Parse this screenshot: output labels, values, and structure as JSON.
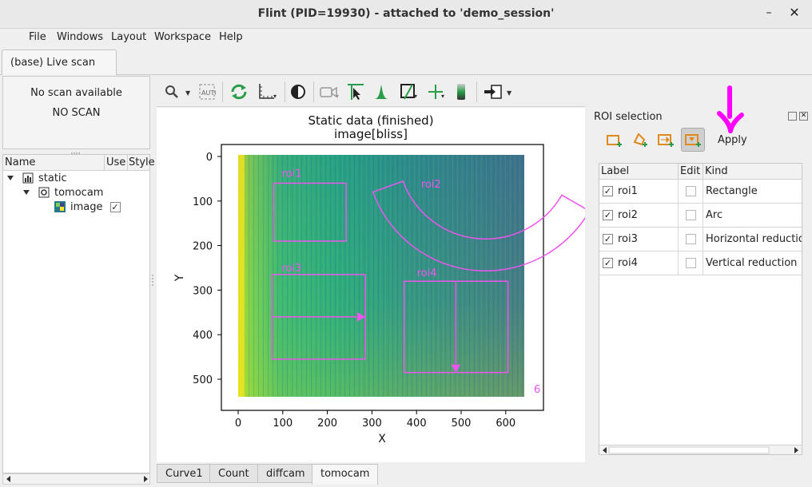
{
  "window": {
    "title": "Flint (PID=19930) - attached to 'demo_session'",
    "minimize_glyph": "–",
    "close_glyph": "✕"
  },
  "menu": [
    "File",
    "Windows",
    "Layout",
    "Workspace",
    "Help"
  ],
  "document_tab": "(base) Live scan",
  "scan_status": {
    "line1": "No scan available",
    "line2": "NO SCAN"
  },
  "tree": {
    "columns": [
      "Name",
      "Use",
      "Style"
    ],
    "rows": [
      {
        "label": "static",
        "icon": "chart-icon",
        "level": 0
      },
      {
        "label": "tomocam",
        "icon": "camera-device-icon",
        "level": 1
      },
      {
        "label": "image",
        "icon": "image-icon",
        "level": 2,
        "use": "✓"
      }
    ]
  },
  "toolbar": {
    "icons": [
      "zoom-icon",
      "auto-scale-icon",
      "refresh-icon",
      "axes-icon",
      "colormap-icon",
      "video-icon",
      "crosshair-icon",
      "histogram-icon",
      "roi-profile-icon",
      "add-icon",
      "colorbar-icon",
      "export-icon"
    ]
  },
  "plot": {
    "title_line1": "Static data (finished)",
    "title_line2": "image[bliss]",
    "xlabel": "X",
    "ylabel": "Y",
    "xticks": [
      "0",
      "100",
      "200",
      "300",
      "400",
      "500",
      "600"
    ],
    "yticks": [
      "0",
      "100",
      "200",
      "300",
      "400",
      "500"
    ],
    "roi_color": "#ee55ee",
    "overflow_label": "6",
    "colors": {
      "viridis_dark": "#3b528b",
      "viridis_mid": "#21918c",
      "viridis_light": "#5ec962",
      "viridis_yellow": "#fde725"
    }
  },
  "rois": [
    {
      "label": "roi1",
      "kind": "Rectangle",
      "x0": 80,
      "y0": 60,
      "x1": 242,
      "y1": 190
    },
    {
      "label": "roi2",
      "kind": "Arc"
    },
    {
      "label": "roi3",
      "kind": "Horizontal reduction",
      "x0": 76,
      "y0": 265,
      "x1": 285,
      "y1": 455,
      "line_y": 360
    },
    {
      "label": "roi4",
      "kind": "Vertical reduction",
      "x0": 372,
      "y0": 280,
      "x1": 605,
      "y1": 485,
      "line_x": 488
    }
  ],
  "roi_panel": {
    "title": "ROI selection",
    "apply_label": "Apply",
    "columns": [
      "Label",
      "Edit",
      "Kind"
    ],
    "use_check": "✓",
    "tool_icons": [
      "rectangle-roi-icon",
      "polygon-roi-icon",
      "horizontal-roi-icon",
      "vertical-roi-icon"
    ],
    "annotation_color": "#ff00ff"
  },
  "bottom_tabs": [
    "Curve1",
    "Count",
    "diffcam",
    "tomocam"
  ],
  "active_bottom_tab": "tomocam"
}
